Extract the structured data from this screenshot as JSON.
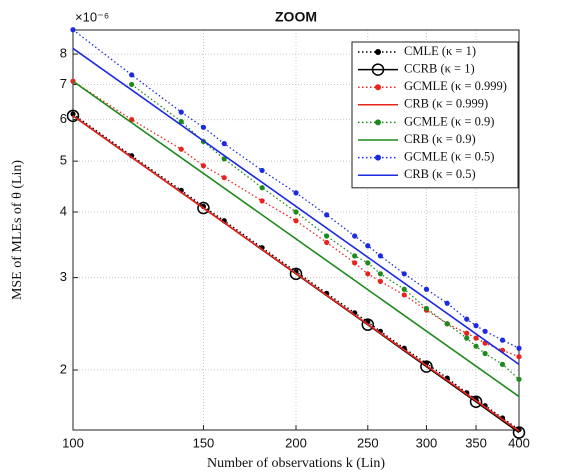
{
  "chart_data": {
    "type": "line",
    "title": "ZOOM",
    "xlabel": "Number of observations k (Lin)",
    "ylabel": "MSE of MLEs of θ (Lin)",
    "y_exponent_label": "×10⁻⁶",
    "xscale": "log",
    "yscale": "log",
    "grid": true,
    "legend": "upper right",
    "xlim": [
      100,
      400
    ],
    "xticks": [
      100,
      150,
      200,
      250,
      300,
      350,
      400
    ],
    "ylim": [
      1.537,
      8.89
    ],
    "yticks": [
      2,
      3,
      4,
      5,
      6,
      7,
      8
    ],
    "series": [
      {
        "name": "CMLE (κ = 1)",
        "color": "#000000",
        "linestyle": "dotted",
        "marker": "dot",
        "x": [
          100,
          120,
          140,
          150,
          160,
          180,
          200,
          220,
          240,
          250,
          260,
          280,
          300,
          320,
          340,
          350,
          360,
          380,
          400
        ],
        "values": [
          6.15,
          5.12,
          4.4,
          4.1,
          3.85,
          3.42,
          3.08,
          2.8,
          2.57,
          2.47,
          2.37,
          2.2,
          2.06,
          1.93,
          1.81,
          1.76,
          1.71,
          1.62,
          1.54
        ]
      },
      {
        "name": "CCRB (κ = 1)",
        "color": "#000000",
        "linestyle": "solid",
        "marker": "circle",
        "x": [
          100,
          150,
          200,
          250,
          300,
          350,
          400
        ],
        "values": [
          6.1,
          4.07,
          3.05,
          2.44,
          2.03,
          1.74,
          1.52
        ]
      },
      {
        "name": "GCMLE (κ = 0.999)",
        "color": "#e8231c",
        "linestyle": "dotted",
        "marker": "dot",
        "x": [
          100,
          120,
          140,
          150,
          160,
          180,
          200,
          220,
          240,
          250,
          260,
          280,
          300,
          320,
          340,
          350,
          360,
          380,
          400
        ],
        "values": [
          7.1,
          6.0,
          5.27,
          4.9,
          4.65,
          4.2,
          3.85,
          3.5,
          3.2,
          3.05,
          2.95,
          2.78,
          2.6,
          2.45,
          2.35,
          2.3,
          2.25,
          2.18,
          2.12
        ]
      },
      {
        "name": "CRB (κ = 0.999)",
        "color": "#e8231c",
        "linestyle": "solid",
        "marker": null,
        "x": [
          100,
          400
        ],
        "values": [
          6.1,
          1.53
        ]
      },
      {
        "name": "GCMLE (κ = 0.9)",
        "color": "#1e8a1e",
        "linestyle": "dotted",
        "marker": "dot",
        "x": [
          120,
          140,
          150,
          160,
          180,
          200,
          220,
          240,
          250,
          260,
          280,
          300,
          320,
          340,
          350,
          360,
          380,
          400
        ],
        "values": [
          7.0,
          5.95,
          5.45,
          5.05,
          4.45,
          4.0,
          3.6,
          3.3,
          3.2,
          3.05,
          2.85,
          2.62,
          2.45,
          2.3,
          2.22,
          2.15,
          2.05,
          1.92
        ]
      },
      {
        "name": "CRB (κ = 0.9)",
        "color": "#1e8a1e",
        "linestyle": "solid",
        "marker": null,
        "x": [
          100,
          400
        ],
        "values": [
          7.1,
          1.78
        ]
      },
      {
        "name": "GCMLE (κ = 0.5)",
        "color": "#1c2be0",
        "linestyle": "dotted",
        "marker": "dot",
        "x": [
          100,
          120,
          140,
          150,
          160,
          180,
          200,
          220,
          240,
          250,
          260,
          280,
          300,
          320,
          340,
          350,
          360,
          380,
          400
        ],
        "values": [
          8.9,
          7.3,
          6.2,
          5.8,
          5.4,
          4.8,
          4.35,
          3.95,
          3.6,
          3.45,
          3.3,
          3.05,
          2.85,
          2.68,
          2.5,
          2.43,
          2.37,
          2.28,
          2.2
        ]
      },
      {
        "name": "CRB (κ = 0.5)",
        "color": "#1c2be0",
        "linestyle": "solid",
        "marker": null,
        "x": [
          100,
          400
        ],
        "values": [
          8.2,
          2.05
        ]
      }
    ]
  }
}
